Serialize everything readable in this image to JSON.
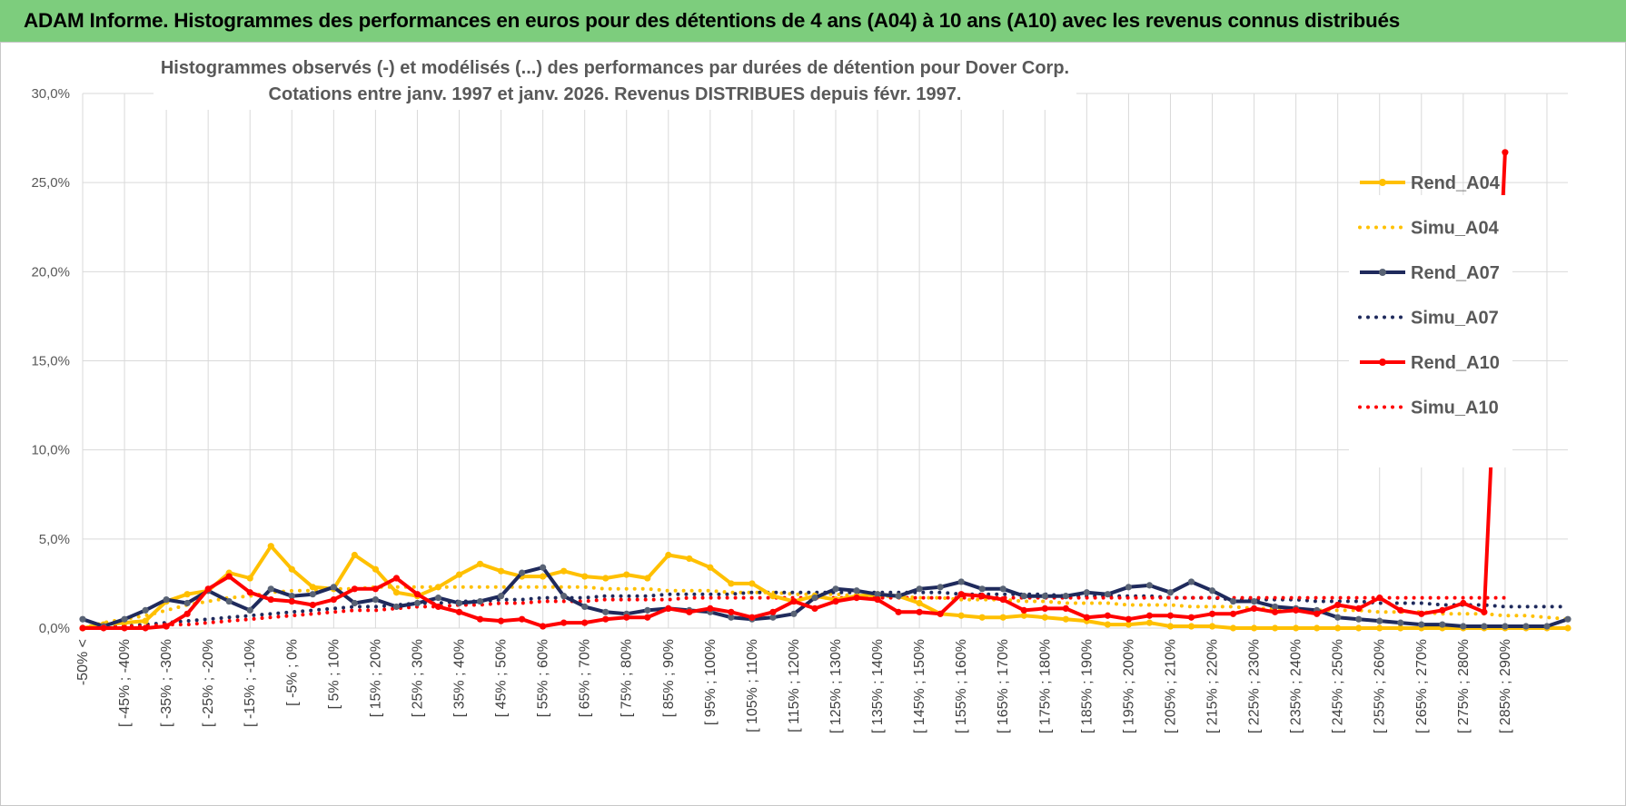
{
  "banner": {
    "title": "ADAM Informe. Histogrammes des performances en euros pour des détentions de 4 ans (A04) à 10 ans (A10) avec les revenus connus distribués"
  },
  "chart_data": {
    "type": "line",
    "title": "Histogrammes observés (-) et modélisés (...) des performances par durées de détention pour Dover Corp.",
    "subtitle": "Cotations entre janv. 1997 et janv. 2026. Revenus DISTRIBUES depuis févr. 1997.",
    "ylim": [
      0,
      30
    ],
    "y_ticks": [
      "0,0%",
      "5,0%",
      "10,0%",
      "15,0%",
      "20,0%",
      "25,0%",
      "30,0%"
    ],
    "x_tick_labels": [
      "-50% <",
      "[ -45% ; -40%",
      "[ -35% ; -30%",
      "[ -25% ; -20%",
      "[ -15% ; -10%",
      "[ -5% ; 0%",
      "[ 5% ; 10%",
      "[ 15% ; 20%",
      "[ 25% ; 30%",
      "[ 35% ; 40%",
      "[ 45% ; 50%",
      "[ 55% ; 60%",
      "[ 65% ; 70%",
      "[ 75% ; 80%",
      "[ 85% ; 90%",
      "[ 95% ; 100%",
      "[ 105% ; 110%",
      "[ 115% ; 120%",
      "[ 125% ; 130%",
      "[ 135% ; 140%",
      "[ 145% ; 150%",
      "[ 155% ; 160%",
      "[ 165% ; 170%",
      "[ 175% ; 180%",
      "[ 185% ; 190%",
      "[ 195% ; 200%",
      "[ 205% ; 210%",
      "[ 215% ; 220%",
      "[ 225% ; 230%",
      "[ 235% ; 240%",
      "[ 245% ; 250%",
      "[ 255% ; 260%",
      "[ 265% ; 270%",
      "[ 275% ; 280%",
      "[ 285% ; 290%"
    ],
    "legend_position": "right",
    "grid": true,
    "series": [
      {
        "name": "Rend_A04",
        "style": "solid",
        "markers": true,
        "color": "#FFC000",
        "values": [
          0.0,
          0.2,
          0.3,
          0.4,
          1.5,
          1.9,
          2.1,
          3.1,
          2.8,
          4.6,
          3.3,
          2.3,
          2.2,
          4.1,
          3.3,
          2.0,
          1.8,
          2.3,
          3.0,
          3.6,
          3.2,
          2.9,
          2.9,
          3.2,
          2.9,
          2.8,
          3.0,
          2.8,
          4.1,
          3.9,
          3.4,
          2.5,
          2.5,
          1.8,
          1.5,
          1.8,
          1.6,
          1.8,
          1.9,
          1.8,
          1.4,
          0.8,
          0.7,
          0.6,
          0.6,
          0.7,
          0.6,
          0.5,
          0.4,
          0.2,
          0.2,
          0.3,
          0.1,
          0.1,
          0.1,
          0.0,
          0.0,
          0.0,
          0.0,
          0.0,
          0.0,
          0.0,
          0.0,
          0.0,
          0.0,
          0.0,
          0.0,
          0.0,
          0.0,
          0.0,
          0.0,
          0.0
        ]
      },
      {
        "name": "Simu_A04",
        "style": "dotted",
        "markers": false,
        "color": "#FFC000",
        "values": [
          0.0,
          0.3,
          0.5,
          0.7,
          1.0,
          1.3,
          1.5,
          1.7,
          1.8,
          2.0,
          2.1,
          2.1,
          2.2,
          2.2,
          2.3,
          2.3,
          2.3,
          2.3,
          2.3,
          2.3,
          2.3,
          2.3,
          2.3,
          2.3,
          2.3,
          2.2,
          2.2,
          2.2,
          2.1,
          2.1,
          2.1,
          2.0,
          2.0,
          2.0,
          1.9,
          1.9,
          1.9,
          1.8,
          1.8,
          1.8,
          1.7,
          1.7,
          1.6,
          1.6,
          1.6,
          1.5,
          1.5,
          1.4,
          1.4,
          1.4,
          1.3,
          1.3,
          1.3,
          1.2,
          1.2,
          1.2,
          1.1,
          1.1,
          1.1,
          1.0,
          1.0,
          1.0,
          0.9,
          0.9,
          0.9,
          0.8,
          0.8,
          0.8,
          0.7,
          0.7,
          0.6,
          0.5
        ]
      },
      {
        "name": "Rend_A07",
        "style": "solid",
        "markers": true,
        "color": "#1F2A5C",
        "values": [
          0.5,
          0.1,
          0.5,
          1.0,
          1.6,
          1.4,
          2.1,
          1.5,
          1.0,
          2.2,
          1.8,
          1.9,
          2.3,
          1.4,
          1.6,
          1.2,
          1.4,
          1.7,
          1.4,
          1.5,
          1.8,
          3.1,
          3.4,
          1.8,
          1.2,
          0.9,
          0.8,
          1.0,
          1.1,
          1.0,
          0.9,
          0.6,
          0.5,
          0.6,
          0.8,
          1.7,
          2.2,
          2.1,
          1.9,
          1.8,
          2.2,
          2.3,
          2.6,
          2.2,
          2.2,
          1.8,
          1.8,
          1.8,
          2.0,
          1.9,
          2.3,
          2.4,
          2.0,
          2.6,
          2.1,
          1.5,
          1.5,
          1.2,
          1.1,
          1.0,
          0.6,
          0.5,
          0.4,
          0.3,
          0.2,
          0.2,
          0.1,
          0.1,
          0.1,
          0.1,
          0.1,
          0.5
        ]
      },
      {
        "name": "Simu_A07",
        "style": "dotted",
        "markers": false,
        "color": "#1F2A5C",
        "values": [
          0.0,
          0.1,
          0.1,
          0.2,
          0.3,
          0.4,
          0.5,
          0.6,
          0.7,
          0.8,
          0.9,
          1.0,
          1.1,
          1.2,
          1.2,
          1.3,
          1.4,
          1.4,
          1.5,
          1.5,
          1.6,
          1.6,
          1.7,
          1.7,
          1.7,
          1.8,
          1.8,
          1.8,
          1.9,
          1.9,
          1.9,
          1.9,
          2.0,
          2.0,
          2.0,
          2.0,
          2.0,
          2.0,
          2.0,
          2.0,
          2.0,
          2.0,
          1.9,
          1.9,
          1.9,
          1.9,
          1.9,
          1.8,
          1.8,
          1.8,
          1.8,
          1.8,
          1.7,
          1.7,
          1.7,
          1.6,
          1.6,
          1.6,
          1.6,
          1.5,
          1.5,
          1.5,
          1.4,
          1.4,
          1.4,
          1.3,
          1.3,
          1.3,
          1.2,
          1.2,
          1.2,
          1.2
        ]
      },
      {
        "name": "Rend_A10",
        "style": "solid",
        "markers": true,
        "color": "#FF0000",
        "values": [
          0.0,
          0.0,
          0.0,
          0.0,
          0.1,
          0.8,
          2.2,
          2.9,
          2.0,
          1.6,
          1.5,
          1.3,
          1.6,
          2.2,
          2.2,
          2.8,
          1.9,
          1.2,
          0.9,
          0.5,
          0.4,
          0.5,
          0.1,
          0.3,
          0.3,
          0.5,
          0.6,
          0.6,
          1.1,
          0.9,
          1.1,
          0.9,
          0.6,
          0.9,
          1.5,
          1.1,
          1.5,
          1.7,
          1.6,
          0.9,
          0.9,
          0.8,
          1.9,
          1.8,
          1.6,
          1.0,
          1.1,
          1.1,
          0.6,
          0.7,
          0.5,
          0.7,
          0.7,
          0.6,
          0.8,
          0.8,
          1.1,
          0.9,
          1.0,
          0.8,
          1.3,
          1.1,
          1.7,
          1.0,
          0.8,
          1.0,
          1.4,
          0.9,
          26.7
        ]
      },
      {
        "name": "Simu_A10",
        "style": "dotted",
        "markers": false,
        "color": "#FF0000",
        "values": [
          0.0,
          0.0,
          0.1,
          0.1,
          0.2,
          0.2,
          0.3,
          0.4,
          0.5,
          0.6,
          0.7,
          0.8,
          0.9,
          1.0,
          1.0,
          1.1,
          1.2,
          1.2,
          1.3,
          1.3,
          1.4,
          1.4,
          1.5,
          1.5,
          1.5,
          1.6,
          1.6,
          1.6,
          1.6,
          1.7,
          1.7,
          1.7,
          1.7,
          1.7,
          1.7,
          1.7,
          1.7,
          1.7,
          1.7,
          1.7,
          1.7,
          1.7,
          1.7,
          1.7,
          1.7,
          1.7,
          1.7,
          1.7,
          1.7,
          1.7,
          1.7,
          1.7,
          1.7,
          1.7,
          1.7,
          1.7,
          1.7,
          1.7,
          1.7,
          1.7,
          1.7,
          1.7,
          1.7,
          1.7,
          1.7,
          1.7,
          1.7,
          1.7,
          1.7
        ]
      }
    ]
  }
}
